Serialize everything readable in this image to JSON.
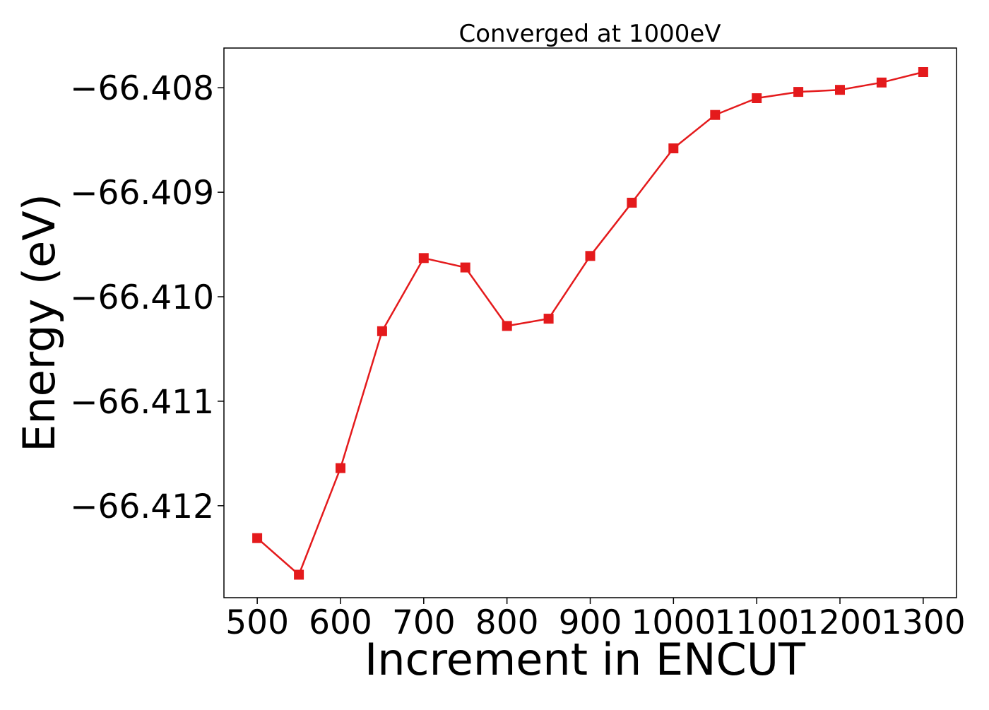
{
  "chart_data": {
    "type": "line",
    "title": "Converged at 1000eV",
    "xlabel": "Increment in ENCUT",
    "ylabel": "Energy (eV)",
    "xlim": [
      460,
      1340
    ],
    "ylim": [
      -66.41288,
      -66.40762
    ],
    "xticks": [
      500,
      600,
      700,
      800,
      900,
      1000,
      1100,
      1200,
      1300
    ],
    "xtick_labels": [
      "500",
      "600",
      "700",
      "800",
      "900",
      "1000",
      "1100",
      "1200",
      "1300"
    ],
    "yticks": [
      -66.408,
      -66.409,
      -66.41,
      -66.411,
      -66.412
    ],
    "ytick_labels": [
      "−66.408",
      "−66.409",
      "−66.410",
      "−66.411",
      "−66.412"
    ],
    "grid": false,
    "legend": "none",
    "series": [
      {
        "color": "#e41a1c",
        "marker": "square",
        "x": [
          500,
          550,
          600,
          650,
          700,
          750,
          800,
          850,
          900,
          950,
          1000,
          1050,
          1100,
          1150,
          1200,
          1250,
          1300
        ],
        "y": [
          -66.41231,
          -66.41266,
          -66.41164,
          -66.41033,
          -66.40963,
          -66.40972,
          -66.41028,
          -66.41021,
          -66.40961,
          -66.4091,
          -66.40858,
          -66.40826,
          -66.4081,
          -66.40804,
          -66.40802,
          -66.40795,
          -66.40785
        ]
      }
    ]
  }
}
